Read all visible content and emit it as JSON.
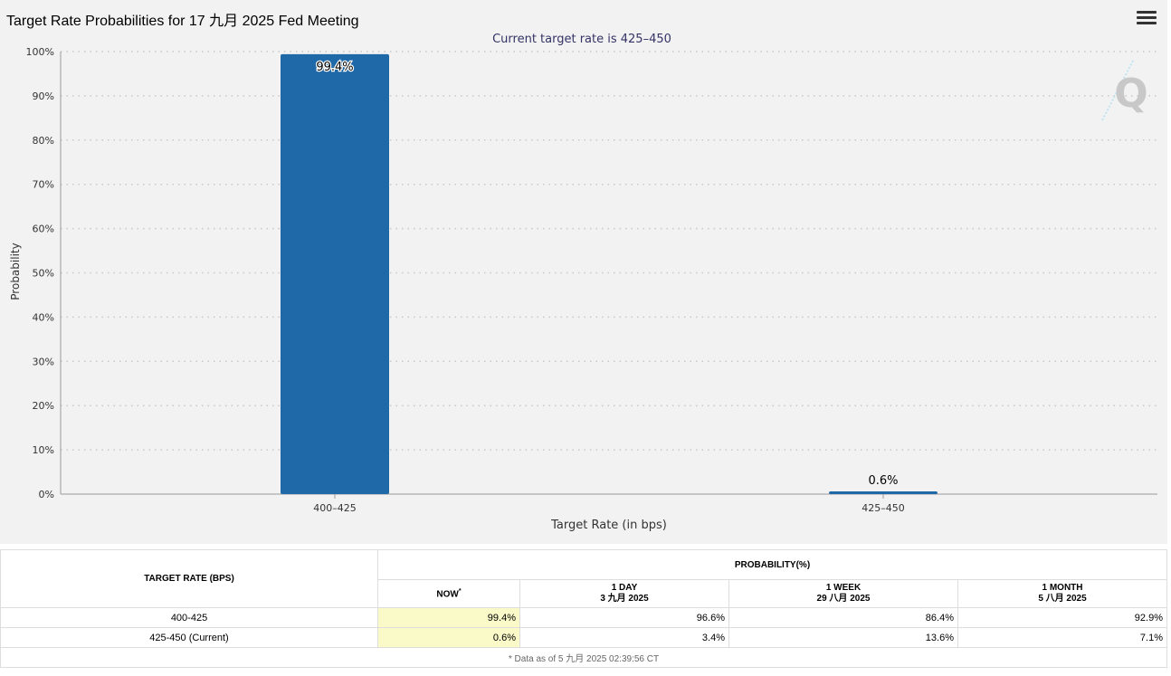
{
  "header": {
    "title": "Target Rate Probabilities for 17 九月 2025 Fed Meeting"
  },
  "chart_data": {
    "type": "bar",
    "title": "Target Rate Probabilities for 17 九月 2025 Fed Meeting",
    "subtitle": "Current target rate is 425–450",
    "categories": [
      "400–425",
      "425–450"
    ],
    "values": [
      99.4,
      0.6
    ],
    "data_labels": [
      "99.4%",
      "0.6%"
    ],
    "xlabel": "Target Rate (in bps)",
    "ylabel": "Probability",
    "ylim": [
      0,
      100
    ],
    "yticks": [
      "0%",
      "10%",
      "20%",
      "30%",
      "40%",
      "50%",
      "60%",
      "70%",
      "80%",
      "90%",
      "100%"
    ],
    "grid": true,
    "bar_color": "#2069a8",
    "watermark": "Q"
  },
  "table": {
    "target_rate_header": "TARGET RATE (BPS)",
    "probability_header": "PROBABILITY(%)",
    "columns": [
      {
        "label": "NOW",
        "marker": "*",
        "date": ""
      },
      {
        "label": "1 DAY",
        "date": "3 九月 2025"
      },
      {
        "label": "1 WEEK",
        "date": "29 八月 2025"
      },
      {
        "label": "1 MONTH",
        "date": "5 八月 2025"
      }
    ],
    "rows": [
      {
        "rate": "400-425",
        "values": [
          "99.4%",
          "96.6%",
          "86.4%",
          "92.9%"
        ]
      },
      {
        "rate": "425-450 (Current)",
        "values": [
          "0.6%",
          "3.4%",
          "13.6%",
          "7.1%"
        ]
      }
    ],
    "footnote": "* Data as of 5 九月 2025 02:39:56 CT",
    "now_highlight_color": "#fafac8"
  }
}
